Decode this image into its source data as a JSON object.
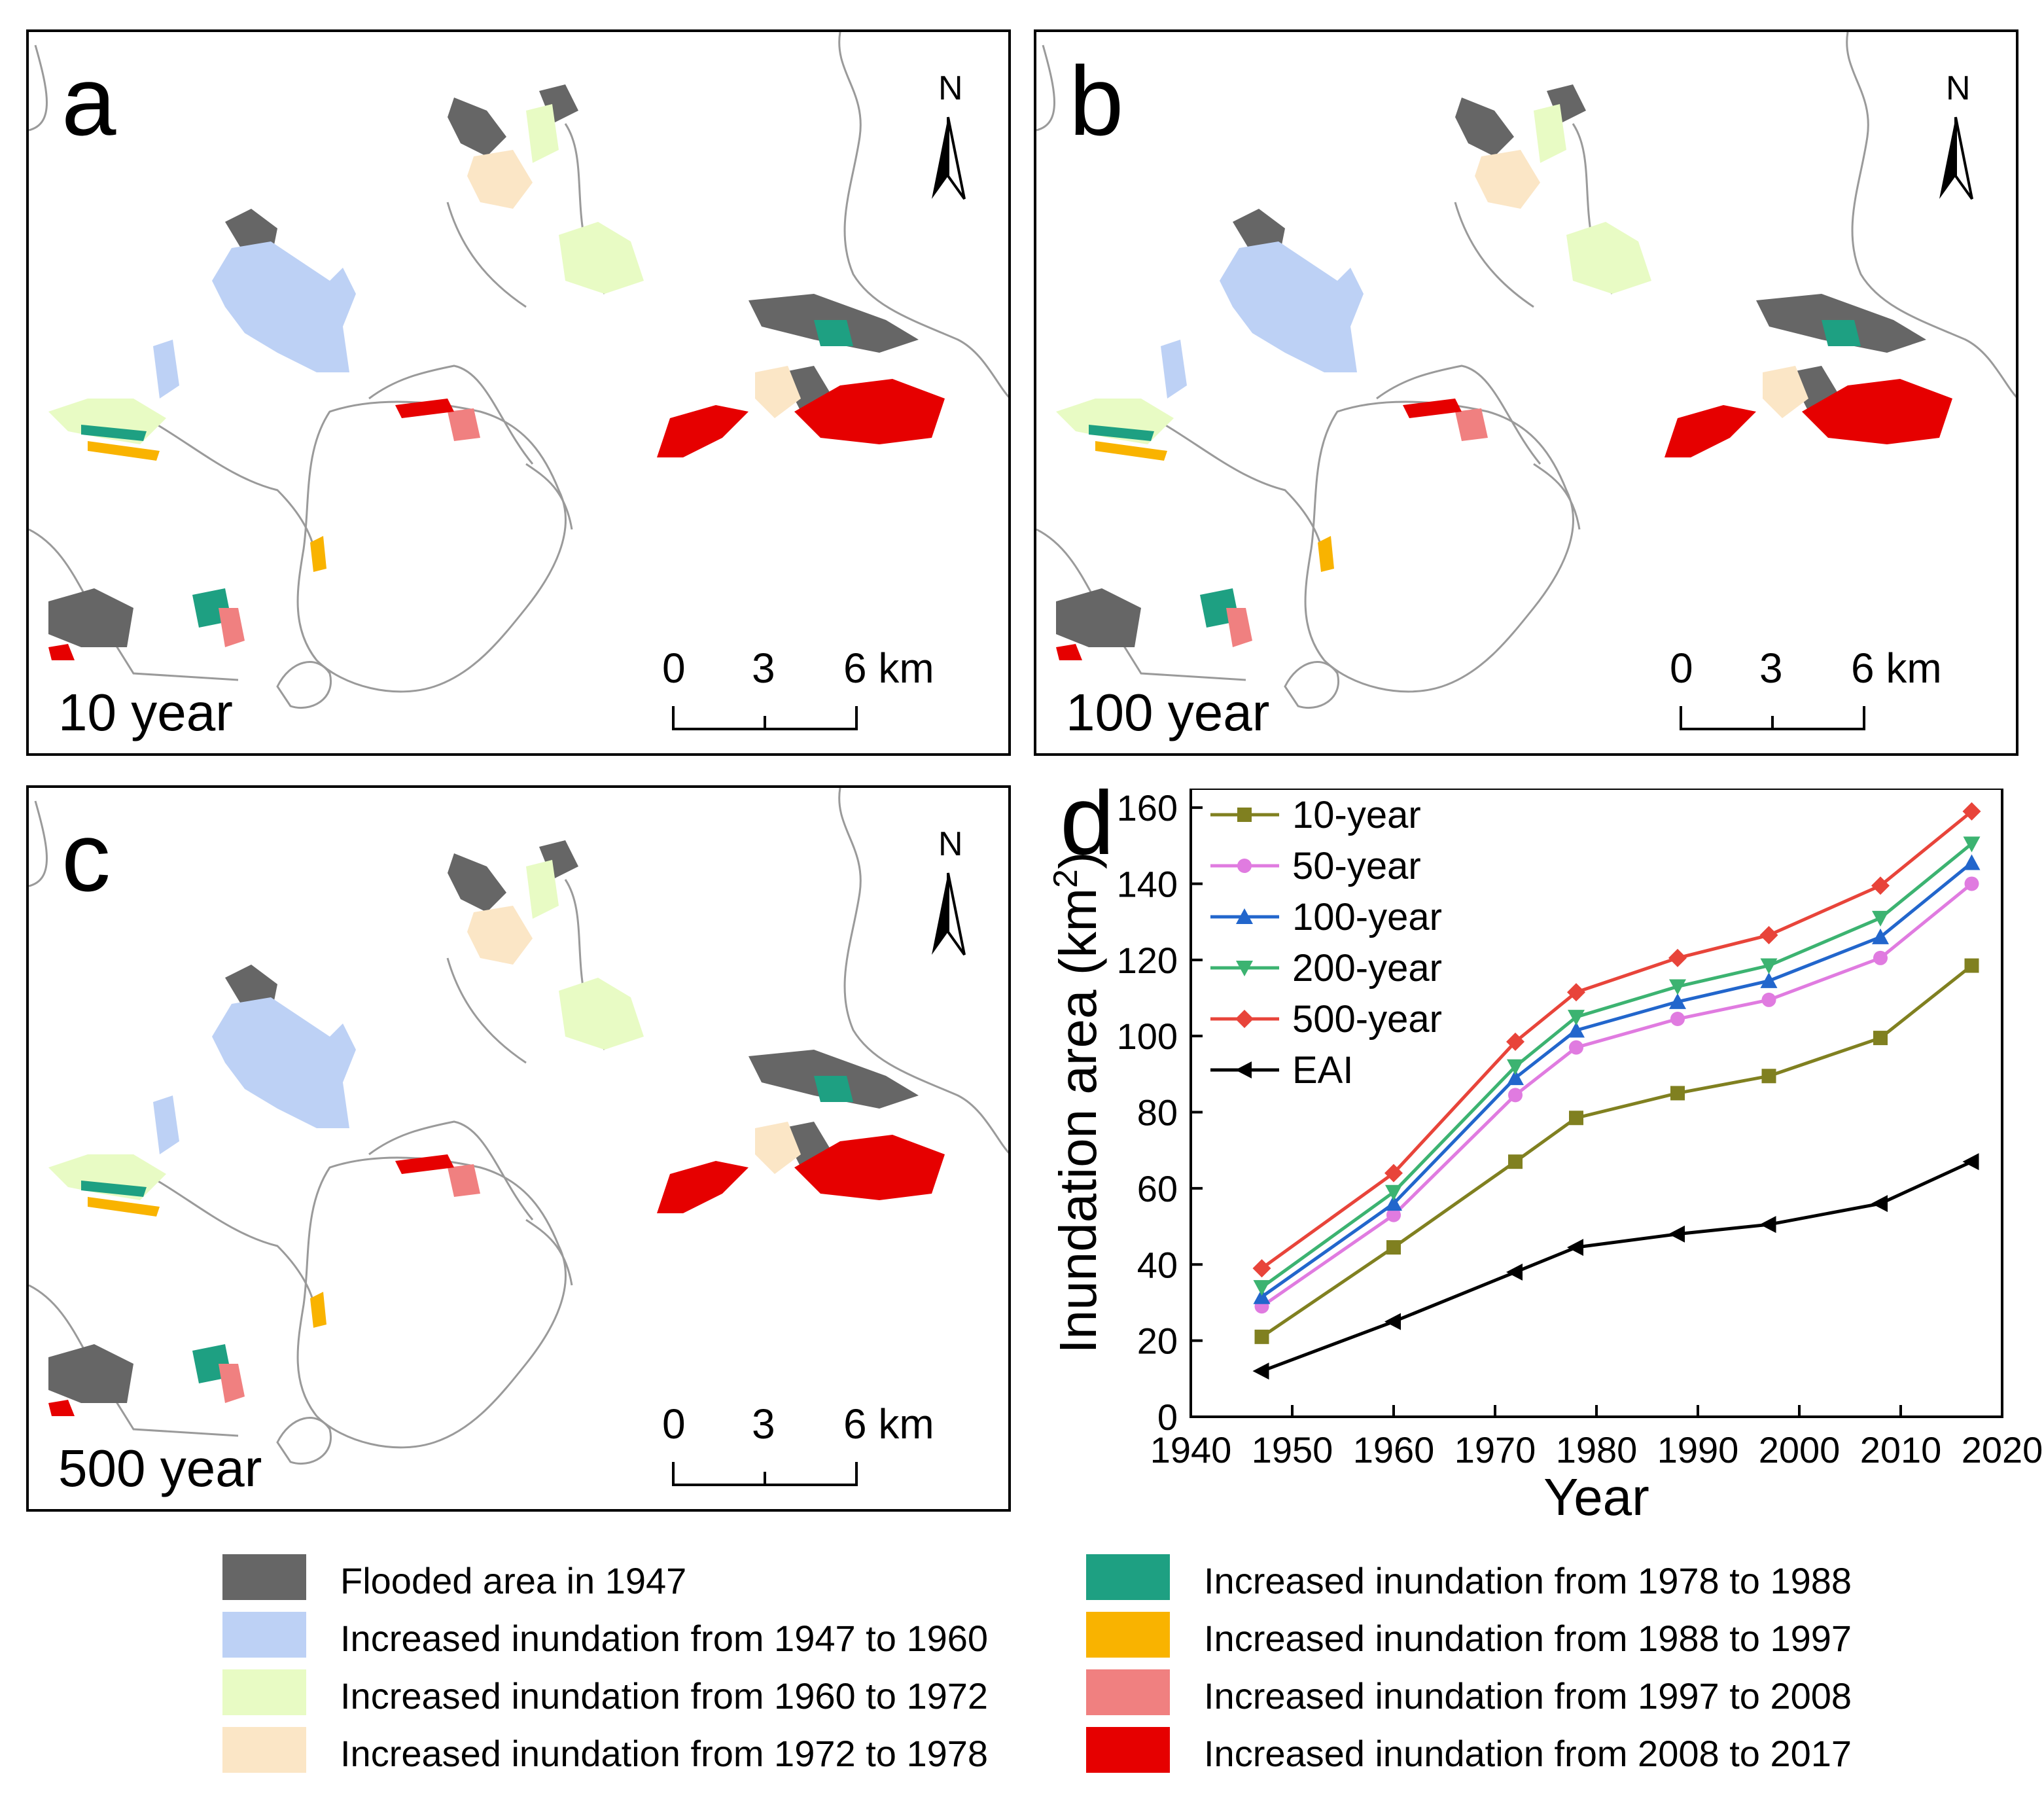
{
  "colors": {
    "flooded_1947": "#666666",
    "inc_1947_1960": "#bdd1f5",
    "inc_1960_1972": "#e8fbc4",
    "inc_1972_1978": "#fbe6c6",
    "inc_1978_1988": "#1ea082",
    "inc_1988_1997": "#f9b300",
    "inc_1997_2008": "#f08080",
    "inc_2008_2017": "#e60000",
    "boundary": "#9a9a9a"
  },
  "panels": [
    {
      "letter": "a",
      "label": "10 year",
      "north": "N",
      "scale": [
        "0",
        "3",
        "6 km"
      ]
    },
    {
      "letter": "b",
      "label": "100 year",
      "north": "N",
      "scale": [
        "0",
        "3",
        "6 km"
      ]
    },
    {
      "letter": "c",
      "label": "500 year",
      "north": "N",
      "scale": [
        "0",
        "3",
        "6 km"
      ]
    }
  ],
  "legend": {
    "items": [
      {
        "label": "Flooded area in 1947",
        "color_key": "flooded_1947"
      },
      {
        "label": "Increased inundation from 1947 to 1960",
        "color_key": "inc_1947_1960"
      },
      {
        "label": "Increased inundation from 1960 to 1972",
        "color_key": "inc_1960_1972"
      },
      {
        "label": "Increased inundation from 1972 to 1978",
        "color_key": "inc_1972_1978"
      },
      {
        "label": "Increased inundation from 1978 to 1988",
        "color_key": "inc_1978_1988"
      },
      {
        "label": "Increased inundation from 1988 to 1997",
        "color_key": "inc_1988_1997"
      },
      {
        "label": "Increased inundation from 1997 to 2008",
        "color_key": "inc_1997_2008"
      },
      {
        "label": "Increased inundation from 2008 to 2017",
        "color_key": "inc_2008_2017"
      }
    ]
  },
  "chart_data": {
    "type": "line",
    "panel_letter": "d",
    "xlabel": "Year",
    "ylabel": "Inundation area (km",
    "ylabel_sup": "2",
    "ylabel_close": ")",
    "xlim": [
      1940,
      2020
    ],
    "ylim": [
      0,
      165
    ],
    "xticks": [
      1940,
      1950,
      1960,
      1970,
      1980,
      1990,
      2000,
      2010,
      2020
    ],
    "yticks": [
      0,
      20,
      40,
      60,
      80,
      100,
      120,
      140,
      160
    ],
    "x": [
      1947,
      1960,
      1972,
      1978,
      1988,
      1997,
      2008,
      2017
    ],
    "legend_position": "top-left",
    "series": [
      {
        "name": "10-year",
        "color": "#808020",
        "marker": "square",
        "values": [
          21,
          44.5,
          67,
          78.5,
          85,
          89.5,
          99.5,
          118.5
        ]
      },
      {
        "name": "50-year",
        "color": "#e07be0",
        "marker": "circle",
        "values": [
          29,
          53,
          84.5,
          97,
          104.5,
          109.5,
          120.5,
          140
        ]
      },
      {
        "name": "100-year",
        "color": "#2266cc",
        "marker": "triangle-up",
        "values": [
          31.5,
          56,
          89,
          101.5,
          109,
          114.5,
          126,
          145.5
        ]
      },
      {
        "name": "200-year",
        "color": "#3cb371",
        "marker": "triangle-down",
        "values": [
          34,
          59,
          92,
          105,
          113,
          118.5,
          131,
          150.5
        ]
      },
      {
        "name": "500-year",
        "color": "#e8443a",
        "marker": "diamond",
        "values": [
          39,
          64,
          98.5,
          111.5,
          120.5,
          126.5,
          139.5,
          159
        ]
      },
      {
        "name": "EAI",
        "color": "#000000",
        "marker": "triangle-left",
        "values": [
          12,
          25,
          38,
          44.5,
          48,
          50.5,
          56,
          67
        ]
      }
    ]
  }
}
